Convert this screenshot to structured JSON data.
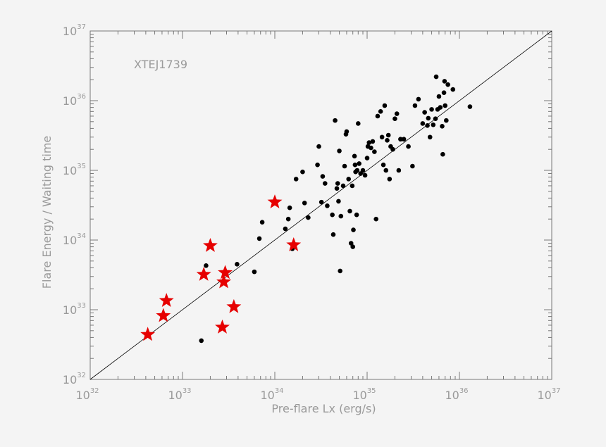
{
  "chart_data": {
    "type": "scatter",
    "title": "",
    "annotation": "XTEJ1739",
    "xlabel": "Pre-flare Lx (erg/s)",
    "ylabel": "Flare Energy / Waiting time",
    "xscale": "log",
    "yscale": "log",
    "xlim": [
      1e+32,
      1e+37
    ],
    "ylim": [
      1e+32,
      1e+37
    ],
    "x_ticks": [
      {
        "base": "10",
        "exp": "32",
        "value": 1e+32
      },
      {
        "base": "10",
        "exp": "33",
        "value": 1e+33
      },
      {
        "base": "10",
        "exp": "34",
        "value": 1e+34
      },
      {
        "base": "10",
        "exp": "35",
        "value": 1e+35
      },
      {
        "base": "10",
        "exp": "36",
        "value": 1e+36
      },
      {
        "base": "10",
        "exp": "37",
        "value": 1e+37
      }
    ],
    "y_ticks": [
      {
        "base": "10",
        "exp": "32",
        "value": 1e+32
      },
      {
        "base": "10",
        "exp": "33",
        "value": 1e+33
      },
      {
        "base": "10",
        "exp": "34",
        "value": 1e+34
      },
      {
        "base": "10",
        "exp": "35",
        "value": 1e+35
      },
      {
        "base": "10",
        "exp": "36",
        "value": 1e+36
      },
      {
        "base": "10",
        "exp": "37",
        "value": 1e+37
      }
    ],
    "grid": false,
    "reference_line": {
      "x": [
        1e+32,
        1e+37
      ],
      "y": [
        1e+32,
        1e+37
      ]
    },
    "colors": {
      "dots": "#000000",
      "stars": "#e60000",
      "line": "#000000",
      "text": "#9a9a9a",
      "axis": "#777777"
    },
    "series": [
      {
        "marker": "dot",
        "points": [
          [
            1.6e+33,
            3.6e+32
          ],
          [
            1.8e+33,
            4.3e+33
          ],
          [
            3.9e+33,
            4.5e+33
          ],
          [
            6e+33,
            3.5e+33
          ],
          [
            6.8e+33,
            1.05e+34
          ],
          [
            7.3e+33,
            1.8e+34
          ],
          [
            1.3e+34,
            1.45e+34
          ],
          [
            1.4e+34,
            2e+34
          ],
          [
            1.45e+34,
            2.9e+34
          ],
          [
            1.55e+34,
            7.5e+33
          ],
          [
            1.7e+34,
            7.5e+34
          ],
          [
            2e+34,
            9.5e+34
          ],
          [
            2.1e+34,
            3.4e+34
          ],
          [
            2.3e+34,
            2.1e+34
          ],
          [
            2.9e+34,
            1.2e+35
          ],
          [
            3e+34,
            2.2e+35
          ],
          [
            3.2e+34,
            3.5e+34
          ],
          [
            3.3e+34,
            8.2e+34
          ],
          [
            3.5e+34,
            6.5e+34
          ],
          [
            3.7e+34,
            3.1e+34
          ],
          [
            4.2e+34,
            2.3e+34
          ],
          [
            4.3e+34,
            1.2e+34
          ],
          [
            4.5e+34,
            5.2e+35
          ],
          [
            4.7e+34,
            5.5e+34
          ],
          [
            4.8e+34,
            6.5e+34
          ],
          [
            4.9e+34,
            3.6e+34
          ],
          [
            5e+34,
            1.9e+35
          ],
          [
            5.1e+34,
            3.6e+33
          ],
          [
            5.2e+34,
            2.2e+34
          ],
          [
            5.5e+34,
            6e+34
          ],
          [
            5.7e+34,
            1.15e+35
          ],
          [
            5.9e+34,
            3.3e+35
          ],
          [
            6e+34,
            3.6e+35
          ],
          [
            6.3e+34,
            7.5e+34
          ],
          [
            6.5e+34,
            2.6e+34
          ],
          [
            6.7e+34,
            9e+33
          ],
          [
            6.9e+34,
            6e+34
          ],
          [
            7e+34,
            8e+33
          ],
          [
            7.1e+34,
            1.4e+34
          ],
          [
            7.3e+34,
            1.6e+35
          ],
          [
            7.4e+34,
            1.2e+35
          ],
          [
            7.5e+34,
            9.5e+34
          ],
          [
            7.7e+34,
            2.3e+34
          ],
          [
            7.8e+34,
            1e+35
          ],
          [
            8e+34,
            4.7e+35
          ],
          [
            8.2e+34,
            1.25e+35
          ],
          [
            8.5e+34,
            9e+34
          ],
          [
            9e+34,
            1e+35
          ],
          [
            9.5e+34,
            8.5e+34
          ],
          [
            1e+35,
            1.5e+35
          ],
          [
            1.02e+35,
            2.2e+35
          ],
          [
            1.05e+35,
            2.5e+35
          ],
          [
            1.1e+35,
            2.1e+35
          ],
          [
            1.15e+35,
            2.6e+35
          ],
          [
            1.2e+35,
            1.85e+35
          ],
          [
            1.25e+35,
            2e+34
          ],
          [
            1.3e+35,
            6e+35
          ],
          [
            1.4e+35,
            7e+35
          ],
          [
            1.45e+35,
            3e+35
          ],
          [
            1.5e+35,
            1.2e+35
          ],
          [
            1.55e+35,
            8.5e+35
          ],
          [
            1.6e+35,
            1e+35
          ],
          [
            1.65e+35,
            2.7e+35
          ],
          [
            1.7e+35,
            3.2e+35
          ],
          [
            1.75e+35,
            7.5e+34
          ],
          [
            1.8e+35,
            2.2e+35
          ],
          [
            1.9e+35,
            2e+35
          ],
          [
            2e+35,
            5.5e+35
          ],
          [
            2.1e+35,
            6.5e+35
          ],
          [
            2.2e+35,
            1e+35
          ],
          [
            2.3e+35,
            2.8e+35
          ],
          [
            2.5e+35,
            2.8e+35
          ],
          [
            2.8e+35,
            2.2e+35
          ],
          [
            3.1e+35,
            1.15e+35
          ],
          [
            3.3e+35,
            8.5e+35
          ],
          [
            3.6e+35,
            1.05e+36
          ],
          [
            4e+35,
            4.7e+35
          ],
          [
            4.2e+35,
            6.8e+35
          ],
          [
            4.5e+35,
            4.4e+35
          ],
          [
            4.6e+35,
            5.6e+35
          ],
          [
            4.8e+35,
            3e+35
          ],
          [
            5e+35,
            7.5e+35
          ],
          [
            5.2e+35,
            4.5e+35
          ],
          [
            5.5e+35,
            5.5e+35
          ],
          [
            5.6e+35,
            2.2e+36
          ],
          [
            5.8e+35,
            7.5e+35
          ],
          [
            6e+35,
            1.15e+36
          ],
          [
            6.2e+35,
            8e+35
          ],
          [
            6.5e+35,
            4.3e+35
          ],
          [
            6.6e+35,
            1.7e+35
          ],
          [
            6.8e+35,
            1.3e+36
          ],
          [
            6.9e+35,
            1.9e+36
          ],
          [
            7e+35,
            8.5e+35
          ],
          [
            7.2e+35,
            5.2e+35
          ],
          [
            7.5e+35,
            1.7e+36
          ],
          [
            8.5e+35,
            1.45e+36
          ],
          [
            1.3e+36,
            8.2e+35
          ]
        ]
      },
      {
        "marker": "star",
        "points": [
          [
            4.2e+32,
            4.4e+32
          ],
          [
            6.2e+32,
            8.2e+32
          ],
          [
            6.7e+32,
            1.35e+33
          ],
          [
            1.7e+33,
            3.2e+33
          ],
          [
            2e+33,
            8.3e+33
          ],
          [
            2.7e+33,
            5.6e+32
          ],
          [
            2.8e+33,
            2.5e+33
          ],
          [
            2.9e+33,
            3.4e+33
          ],
          [
            3.6e+33,
            1.1e+33
          ],
          [
            1e+34,
            3.5e+34
          ],
          [
            1.6e+34,
            8.5e+33
          ]
        ]
      }
    ]
  }
}
